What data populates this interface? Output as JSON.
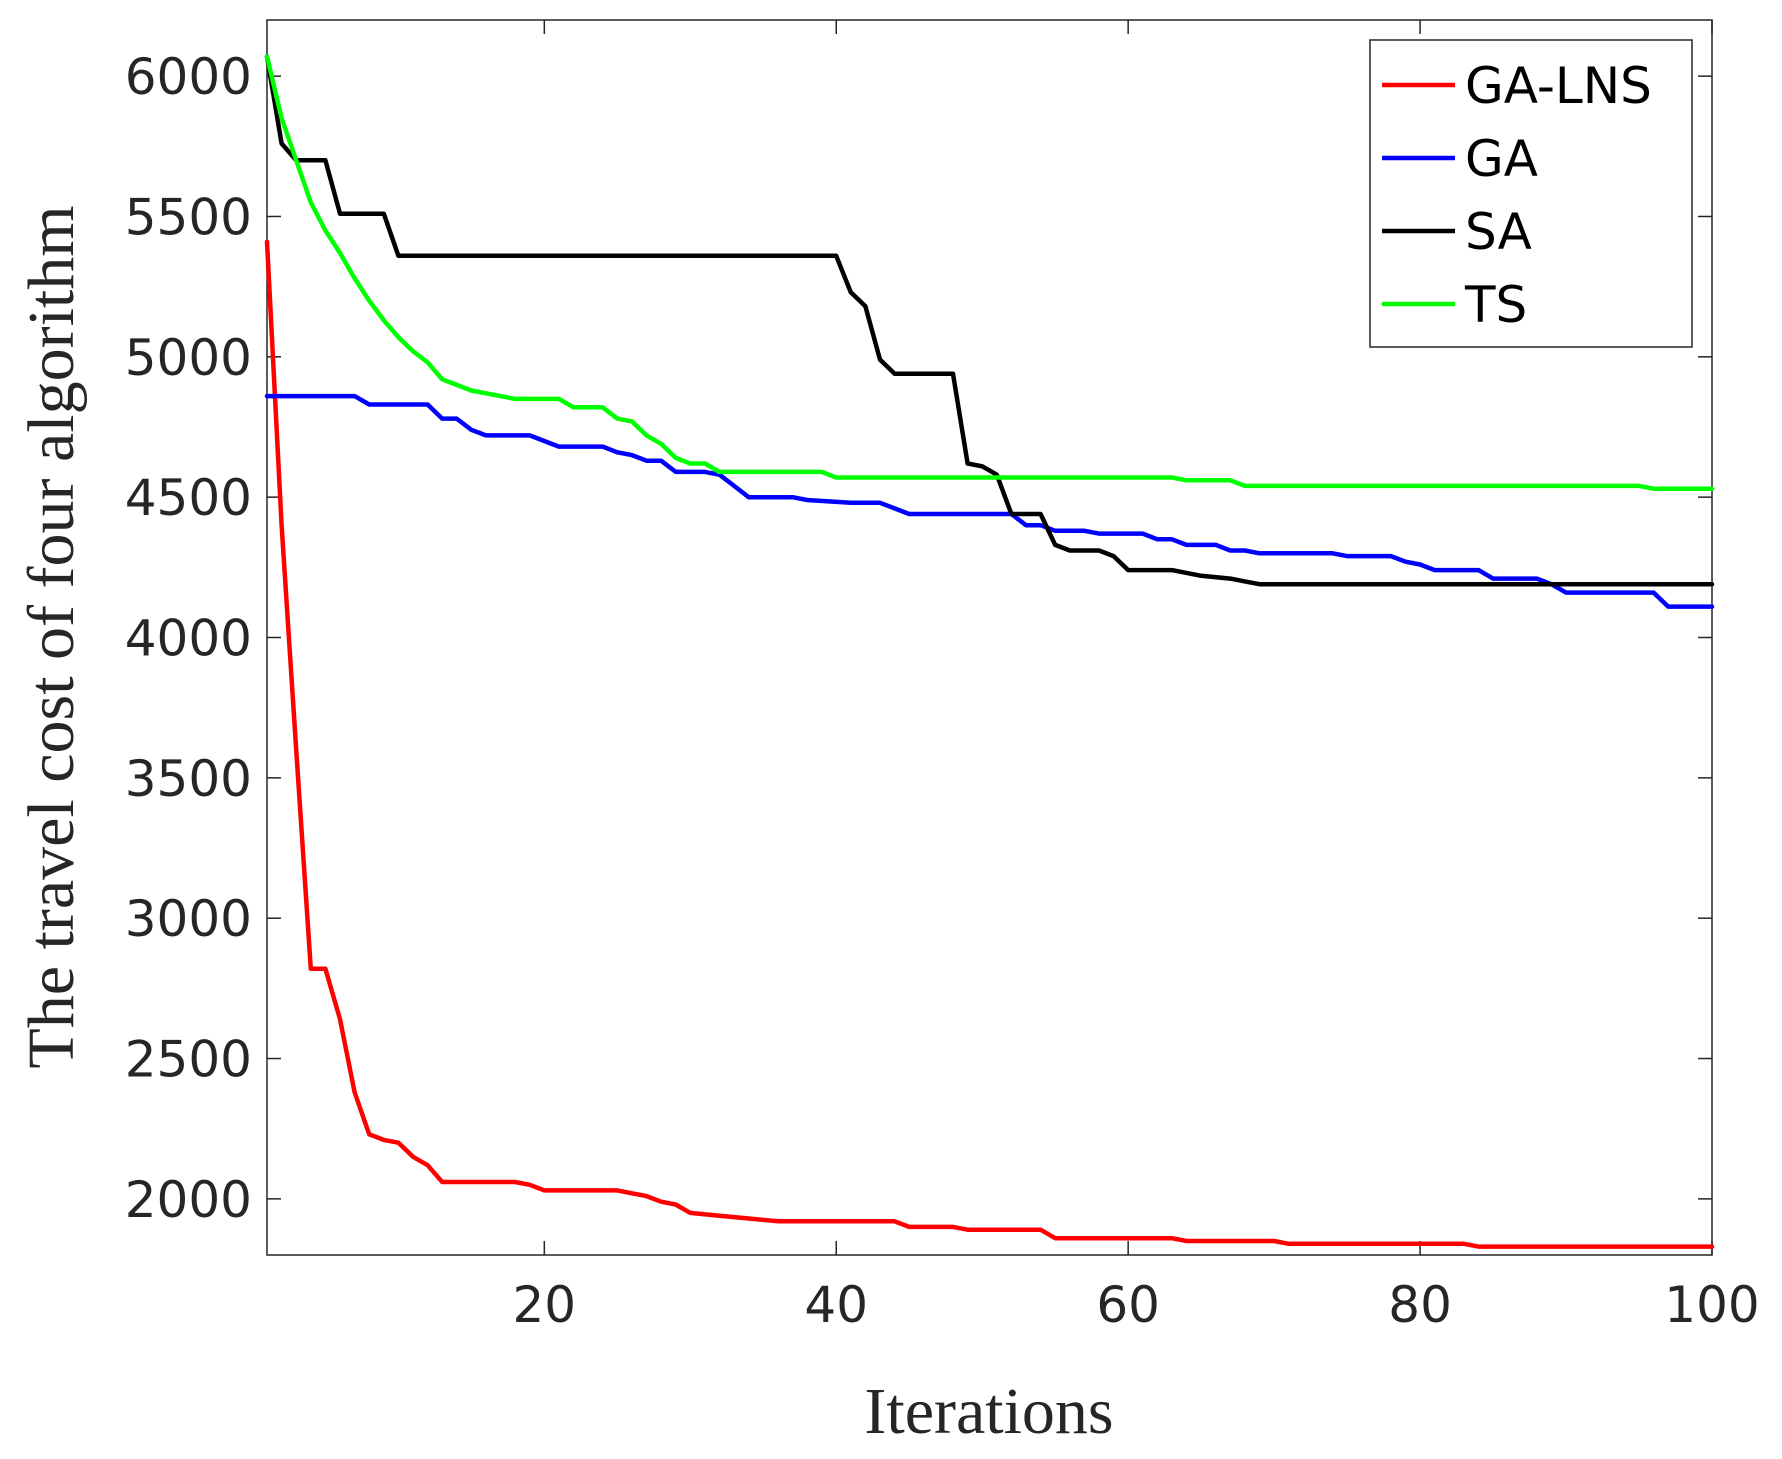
{
  "chart_data": {
    "type": "line",
    "title": "",
    "xlabel": "Iterations",
    "ylabel": "The travel cost of four algorithm",
    "xlim": [
      1,
      100
    ],
    "ylim": [
      1800,
      6200
    ],
    "xticks": [
      20,
      40,
      60,
      80,
      100
    ],
    "yticks": [
      2000,
      2500,
      3000,
      3500,
      4000,
      4500,
      5000,
      5500,
      6000
    ],
    "grid": false,
    "legend_position": "top-right",
    "series": [
      {
        "name": "GA-LNS",
        "color": "#ff0000",
        "points": [
          [
            1,
            5410
          ],
          [
            2,
            4400
          ],
          [
            3,
            3600
          ],
          [
            4,
            2820
          ],
          [
            5,
            2820
          ],
          [
            6,
            2640
          ],
          [
            7,
            2380
          ],
          [
            8,
            2230
          ],
          [
            9,
            2210
          ],
          [
            10,
            2200
          ],
          [
            11,
            2150
          ],
          [
            12,
            2120
          ],
          [
            13,
            2060
          ],
          [
            18,
            2060
          ],
          [
            19,
            2050
          ],
          [
            20,
            2030
          ],
          [
            25,
            2030
          ],
          [
            26,
            2020
          ],
          [
            27,
            2010
          ],
          [
            28,
            1990
          ],
          [
            29,
            1980
          ],
          [
            30,
            1950
          ],
          [
            32,
            1940
          ],
          [
            34,
            1930
          ],
          [
            36,
            1920
          ],
          [
            44,
            1920
          ],
          [
            45,
            1900
          ],
          [
            48,
            1900
          ],
          [
            49,
            1890
          ],
          [
            54,
            1890
          ],
          [
            55,
            1860
          ],
          [
            63,
            1860
          ],
          [
            64,
            1850
          ],
          [
            70,
            1850
          ],
          [
            71,
            1840
          ],
          [
            83,
            1840
          ],
          [
            84,
            1830
          ],
          [
            100,
            1830
          ]
        ]
      },
      {
        "name": "GA",
        "color": "#0000ff",
        "points": [
          [
            1,
            4860
          ],
          [
            7,
            4860
          ],
          [
            8,
            4830
          ],
          [
            12,
            4830
          ],
          [
            13,
            4780
          ],
          [
            14,
            4780
          ],
          [
            15,
            4740
          ],
          [
            16,
            4720
          ],
          [
            19,
            4720
          ],
          [
            20,
            4700
          ],
          [
            21,
            4680
          ],
          [
            24,
            4680
          ],
          [
            25,
            4660
          ],
          [
            26,
            4650
          ],
          [
            27,
            4630
          ],
          [
            28,
            4630
          ],
          [
            29,
            4590
          ],
          [
            31,
            4590
          ],
          [
            32,
            4580
          ],
          [
            33,
            4540
          ],
          [
            34,
            4500
          ],
          [
            37,
            4500
          ],
          [
            38,
            4490
          ],
          [
            41,
            4480
          ],
          [
            43,
            4480
          ],
          [
            44,
            4460
          ],
          [
            45,
            4440
          ],
          [
            52,
            4440
          ],
          [
            53,
            4400
          ],
          [
            54,
            4400
          ],
          [
            55,
            4380
          ],
          [
            57,
            4380
          ],
          [
            58,
            4370
          ],
          [
            61,
            4370
          ],
          [
            62,
            4350
          ],
          [
            63,
            4350
          ],
          [
            64,
            4330
          ],
          [
            66,
            4330
          ],
          [
            67,
            4310
          ],
          [
            68,
            4310
          ],
          [
            69,
            4300
          ],
          [
            74,
            4300
          ],
          [
            75,
            4290
          ],
          [
            78,
            4290
          ],
          [
            79,
            4270
          ],
          [
            80,
            4260
          ],
          [
            81,
            4240
          ],
          [
            84,
            4240
          ],
          [
            85,
            4210
          ],
          [
            88,
            4210
          ],
          [
            89,
            4190
          ],
          [
            90,
            4160
          ],
          [
            96,
            4160
          ],
          [
            97,
            4110
          ],
          [
            100,
            4110
          ]
        ]
      },
      {
        "name": "SA",
        "color": "#000000",
        "points": [
          [
            1,
            6070
          ],
          [
            2,
            5760
          ],
          [
            3,
            5700
          ],
          [
            5,
            5700
          ],
          [
            6,
            5510
          ],
          [
            9,
            5510
          ],
          [
            10,
            5360
          ],
          [
            40,
            5360
          ],
          [
            41,
            5230
          ],
          [
            42,
            5180
          ],
          [
            43,
            4990
          ],
          [
            44,
            4940
          ],
          [
            48,
            4940
          ],
          [
            49,
            4620
          ],
          [
            50,
            4610
          ],
          [
            51,
            4580
          ],
          [
            52,
            4440
          ],
          [
            54,
            4440
          ],
          [
            55,
            4330
          ],
          [
            56,
            4310
          ],
          [
            58,
            4310
          ],
          [
            59,
            4290
          ],
          [
            60,
            4240
          ],
          [
            63,
            4240
          ],
          [
            65,
            4220
          ],
          [
            67,
            4210
          ],
          [
            68,
            4200
          ],
          [
            69,
            4190
          ],
          [
            100,
            4190
          ]
        ]
      },
      {
        "name": "TS",
        "color": "#00ff00",
        "points": [
          [
            1,
            6070
          ],
          [
            2,
            5850
          ],
          [
            3,
            5700
          ],
          [
            4,
            5550
          ],
          [
            5,
            5450
          ],
          [
            6,
            5370
          ],
          [
            7,
            5280
          ],
          [
            8,
            5200
          ],
          [
            9,
            5130
          ],
          [
            10,
            5070
          ],
          [
            11,
            5020
          ],
          [
            12,
            4980
          ],
          [
            13,
            4920
          ],
          [
            14,
            4900
          ],
          [
            15,
            4880
          ],
          [
            16,
            4870
          ],
          [
            17,
            4860
          ],
          [
            18,
            4850
          ],
          [
            21,
            4850
          ],
          [
            22,
            4820
          ],
          [
            24,
            4820
          ],
          [
            25,
            4780
          ],
          [
            26,
            4770
          ],
          [
            27,
            4720
          ],
          [
            28,
            4690
          ],
          [
            29,
            4640
          ],
          [
            30,
            4620
          ],
          [
            31,
            4620
          ],
          [
            32,
            4590
          ],
          [
            33,
            4590
          ],
          [
            39,
            4590
          ],
          [
            40,
            4570
          ],
          [
            63,
            4570
          ],
          [
            64,
            4560
          ],
          [
            67,
            4560
          ],
          [
            68,
            4540
          ],
          [
            95,
            4540
          ],
          [
            96,
            4530
          ],
          [
            100,
            4530
          ]
        ]
      }
    ]
  }
}
